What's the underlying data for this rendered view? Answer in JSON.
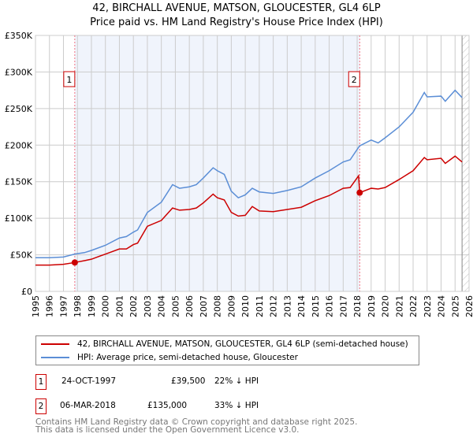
{
  "chart_data": {
    "type": "line",
    "title": "42, BIRCHALL AVENUE, MATSON, GLOUCESTER, GL4 6LP",
    "subtitle": "Price paid vs. HM Land Registry's House Price Index (HPI)",
    "xlim": [
      1995,
      2026
    ],
    "ylim": [
      0,
      350000
    ],
    "yticks": [
      0,
      50000,
      100000,
      150000,
      200000,
      250000,
      300000,
      350000
    ],
    "ytick_labels": [
      "£0",
      "£50K",
      "£100K",
      "£150K",
      "£200K",
      "£250K",
      "£300K",
      "£350K"
    ],
    "xticks": [
      1995,
      1996,
      1997,
      1998,
      1999,
      2000,
      2001,
      2002,
      2003,
      2004,
      2005,
      2006,
      2007,
      2008,
      2009,
      2010,
      2011,
      2012,
      2013,
      2014,
      2015,
      2016,
      2017,
      2018,
      2019,
      2020,
      2021,
      2022,
      2023,
      2024,
      2025,
      2026
    ],
    "grid": true,
    "shaded_range": [
      1997.81,
      2018.18
    ],
    "hatched_from": 2025.5,
    "series": [
      {
        "name": "42, BIRCHALL AVENUE, MATSON, GLOUCESTER, GL4 6LP (semi-detached house)",
        "color": "#cc0000",
        "x": [
          1995,
          1996,
          1997,
          1997.81,
          1998.5,
          1999,
          2000,
          2001,
          2001.5,
          2002,
          2002.3,
          2003,
          2004,
          2004.8,
          2005.3,
          2006,
          2006.5,
          2007,
          2007.7,
          2008,
          2008.5,
          2009,
          2009.5,
          2010,
          2010.5,
          2011,
          2012,
          2013,
          2014,
          2015,
          2016,
          2017,
          2017.5,
          2018.1,
          2018.18,
          2019,
          2019.5,
          2020,
          2021,
          2022,
          2022.8,
          2023,
          2024,
          2024.3,
          2025,
          2025.5
        ],
        "y": [
          36000,
          36000,
          37000,
          39500,
          42000,
          44000,
          51000,
          58000,
          58000,
          64000,
          66000,
          89000,
          97000,
          114000,
          111000,
          112000,
          114000,
          121000,
          133000,
          128000,
          125000,
          108000,
          103000,
          104000,
          116000,
          110000,
          109000,
          112000,
          115000,
          124000,
          131000,
          141000,
          142000,
          158000,
          135000,
          141000,
          140000,
          142000,
          153000,
          165000,
          183000,
          180000,
          182000,
          175000,
          185000,
          177000
        ]
      },
      {
        "name": "HPI: Average price, semi-detached house, Gloucester",
        "color": "#5b8ed6",
        "x": [
          1995,
          1996,
          1997,
          1997.81,
          1998.5,
          1999,
          2000,
          2001,
          2001.5,
          2002,
          2002.3,
          2003,
          2004,
          2004.8,
          2005.3,
          2006,
          2006.5,
          2007,
          2007.7,
          2008,
          2008.5,
          2009,
          2009.5,
          2010,
          2010.5,
          2011,
          2012,
          2013,
          2014,
          2015,
          2016,
          2017,
          2017.5,
          2018.1,
          2018.18,
          2019,
          2019.5,
          2020,
          2021,
          2022,
          2022.8,
          2023,
          2024,
          2024.3,
          2025,
          2025.5
        ],
        "y": [
          46000,
          46000,
          47000,
          51000,
          53000,
          56000,
          63000,
          73000,
          75000,
          81000,
          84000,
          108000,
          122000,
          146000,
          141000,
          143000,
          146000,
          155000,
          169000,
          165000,
          160000,
          137000,
          128000,
          132000,
          141000,
          136000,
          134000,
          138000,
          143000,
          155000,
          165000,
          177000,
          180000,
          197000,
          199000,
          207000,
          203000,
          210000,
          225000,
          245000,
          272000,
          266000,
          267000,
          260000,
          275000,
          265000
        ]
      }
    ],
    "annotations": [
      {
        "label": "1",
        "x": 1997.81,
        "y": 39500
      },
      {
        "label": "2",
        "x": 2018.18,
        "y": 135000
      }
    ]
  },
  "legend": {
    "items": [
      "42, BIRCHALL AVENUE, MATSON, GLOUCESTER, GL4 6LP (semi-detached house)",
      "HPI: Average price, semi-detached house, Gloucester"
    ]
  },
  "transactions": [
    {
      "num": "1",
      "date": "24-OCT-1997",
      "price": "£39,500",
      "hpi": "22% ↓ HPI"
    },
    {
      "num": "2",
      "date": "06-MAR-2018",
      "price": "£135,000",
      "hpi": "33% ↓ HPI"
    }
  ],
  "footer": [
    "Contains HM Land Registry data © Crown copyright and database right 2025.",
    "This data is licensed under the Open Government Licence v3.0."
  ]
}
